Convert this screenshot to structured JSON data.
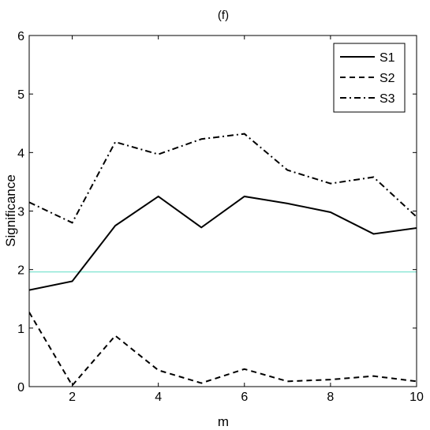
{
  "chart_data": {
    "type": "line",
    "title": "(f)",
    "xlabel": "m",
    "ylabel": "Significance",
    "xlim": [
      1,
      10
    ],
    "ylim": [
      0,
      6
    ],
    "xticks": [
      2,
      4,
      6,
      8,
      10
    ],
    "yticks": [
      0,
      1,
      2,
      3,
      4,
      5,
      6
    ],
    "grid": false,
    "legend_position": "top-right",
    "x": [
      1,
      2,
      3,
      4,
      5,
      6,
      7,
      8,
      9,
      10
    ],
    "series": [
      {
        "name": "S1",
        "style": "solid",
        "values": [
          1.65,
          1.8,
          2.75,
          3.25,
          2.72,
          3.25,
          3.13,
          2.98,
          2.61,
          2.71
        ]
      },
      {
        "name": "S2",
        "style": "dashed",
        "values": [
          1.27,
          0.02,
          0.87,
          0.28,
          0.06,
          0.3,
          0.09,
          0.12,
          0.18,
          0.09
        ]
      },
      {
        "name": "S3",
        "style": "dashdot",
        "values": [
          3.15,
          2.8,
          4.18,
          3.97,
          4.23,
          4.32,
          3.7,
          3.47,
          3.58,
          2.9
        ]
      }
    ],
    "reference_line": {
      "y": 1.96,
      "color": "#7fe3d0"
    }
  }
}
